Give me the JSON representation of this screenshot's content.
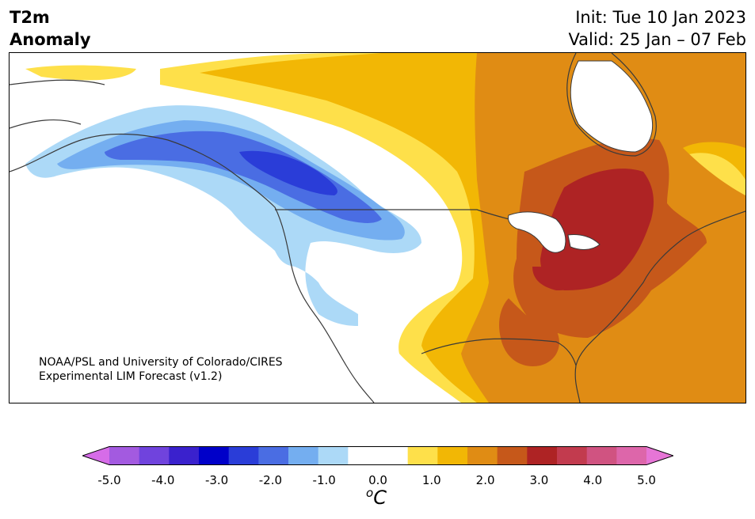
{
  "title": {
    "line1": "T2m",
    "line2": "Anomaly"
  },
  "dates": {
    "init": "Init: Tue 10 Jan 2023",
    "valid": "Valid: 25 Jan – 07 Feb"
  },
  "credit": {
    "line1": "NOAA/PSL and University of Colorado/CIRES",
    "line2": "Experimental LIM Forecast (v1.2)"
  },
  "colorbar": {
    "unit": "C",
    "unit_sup": "o",
    "tick_labels": [
      "-5.0",
      "-4.0",
      "-3.0",
      "-2.0",
      "-1.0",
      "0.0",
      "1.0",
      "2.0",
      "3.0",
      "4.0",
      "5.0"
    ],
    "under_color": "#d66ce8",
    "over_color": "#e675d6",
    "colors": [
      "#a35ae0",
      "#7043dd",
      "#3a21cd",
      "#0000c9",
      "#2a3dd8",
      "#4a6de3",
      "#74aef0",
      "#acd9f7",
      "#ffffff",
      "#ffffff",
      "#fee04a",
      "#f2b705",
      "#e08c14",
      "#c6581a",
      "#ae2324",
      "#c23b4e",
      "#d05381",
      "#dd66aa"
    ]
  },
  "anomaly_colors": {
    "minus_2_5": "#2a3dd8",
    "minus_2": "#4a6de3",
    "minus_1_5": "#74aef0",
    "minus_1": "#acd9f7",
    "zero": "#ffffff",
    "plus_1": "#fee04a",
    "plus_1_5": "#f2b705",
    "plus_2": "#e08c14",
    "plus_2_5": "#c6581a",
    "plus_3": "#ae2324",
    "coast": "#3a3a3a"
  }
}
